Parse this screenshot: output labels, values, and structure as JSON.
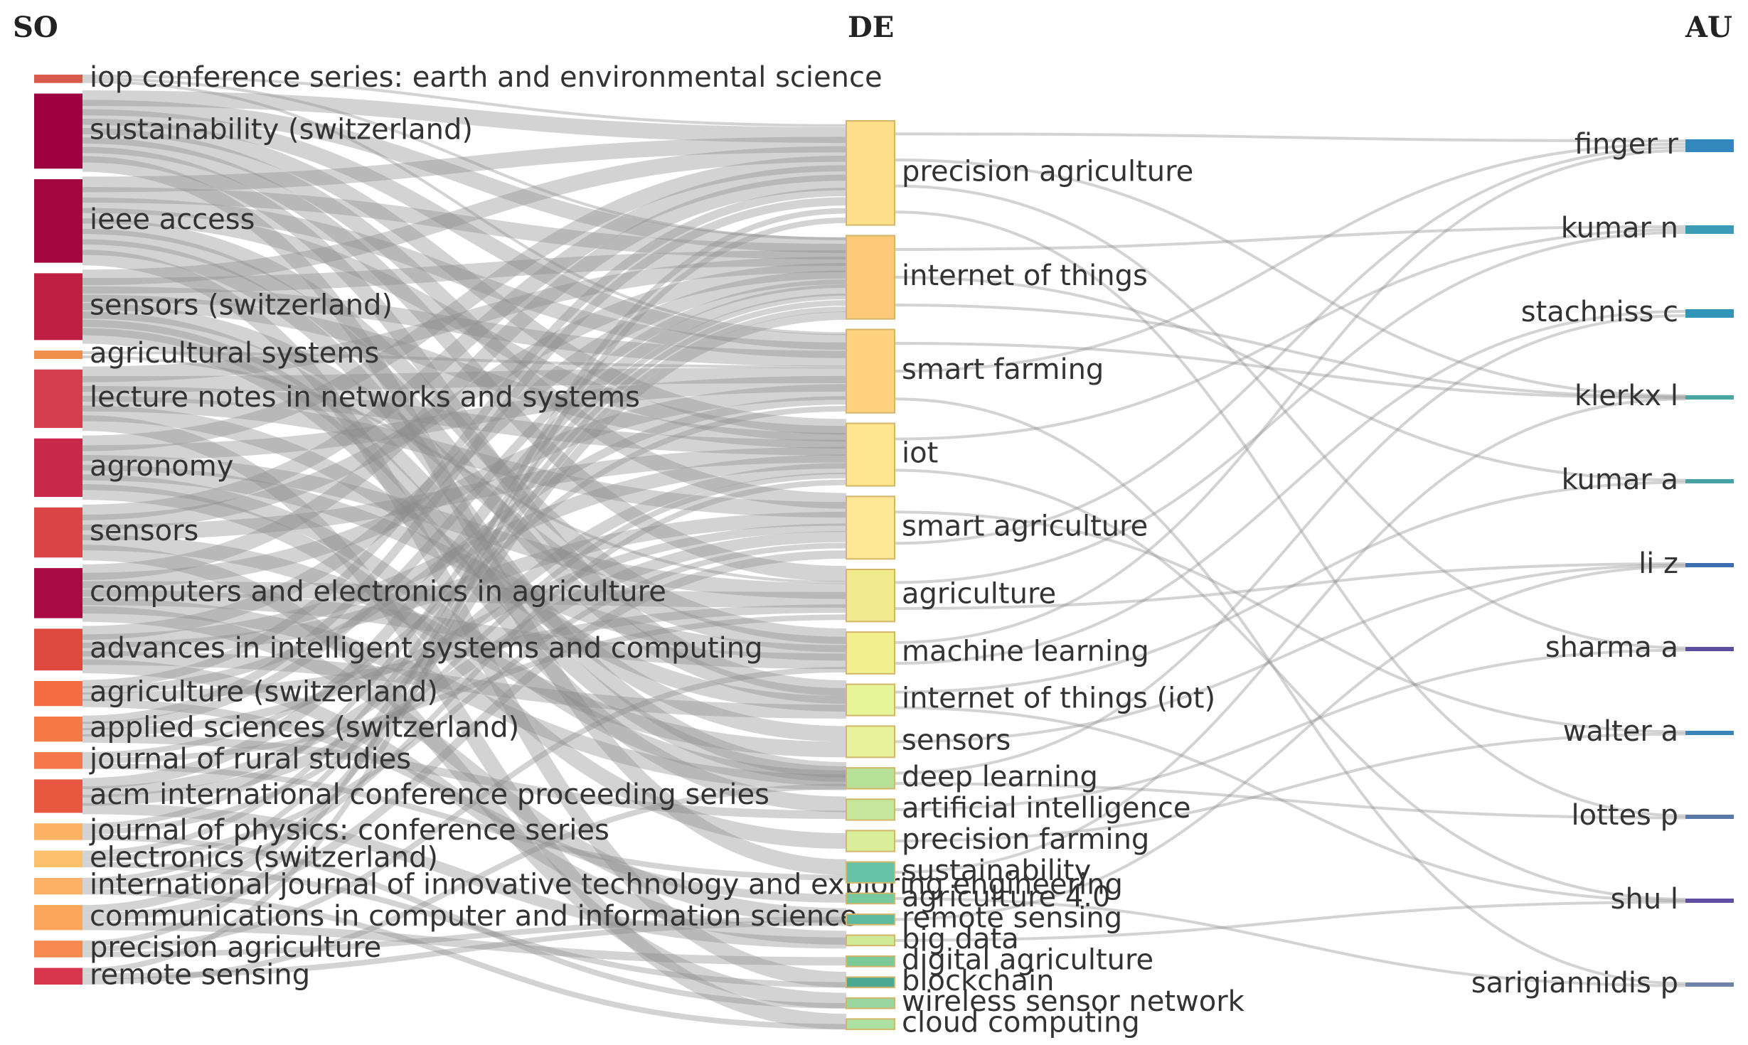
{
  "columns": [
    {
      "key": "SO",
      "label": "SO"
    },
    {
      "key": "DE",
      "label": "DE"
    },
    {
      "key": "AU",
      "label": "AU"
    }
  ],
  "so_nodes": [
    {
      "label": "iop conference series: earth and environmental science",
      "color": "#d85a4a",
      "weight": 1
    },
    {
      "label": "sustainability (switzerland)",
      "color": "#9e0142",
      "weight": 9
    },
    {
      "label": "ieee access",
      "color": "#a4063f",
      "weight": 10
    },
    {
      "label": "sensors (switzerland)",
      "color": "#c01f44",
      "weight": 8
    },
    {
      "label": "agricultural systems",
      "color": "#f08d4a",
      "weight": 1
    },
    {
      "label": "lecture notes in networks and systems",
      "color": "#d53e4f",
      "weight": 7
    },
    {
      "label": "agronomy",
      "color": "#c8284a",
      "weight": 7
    },
    {
      "label": "sensors",
      "color": "#dc4548",
      "weight": 6
    },
    {
      "label": "computers and electronics in agriculture",
      "color": "#a80b43",
      "weight": 6
    },
    {
      "label": "advances in intelligent systems and computing",
      "color": "#e0493f",
      "weight": 5
    },
    {
      "label": "agriculture (switzerland)",
      "color": "#f46d43",
      "weight": 3
    },
    {
      "label": "applied sciences (switzerland)",
      "color": "#f57a45",
      "weight": 3
    },
    {
      "label": "journal of rural studies",
      "color": "#f4784a",
      "weight": 2
    },
    {
      "label": "acm international conference proceeding series",
      "color": "#e8573f",
      "weight": 4
    },
    {
      "label": "journal of physics: conference series",
      "color": "#fbb262",
      "weight": 2
    },
    {
      "label": "electronics (switzerland)",
      "color": "#fdc06d",
      "weight": 2
    },
    {
      "label": "international journal of innovative technology and exploring engineering",
      "color": "#fdb268",
      "weight": 2
    },
    {
      "label": "communications in computer and information science",
      "color": "#fba65a",
      "weight": 3
    },
    {
      "label": "precision agriculture",
      "color": "#f6894e",
      "weight": 2
    },
    {
      "label": "remote sensing",
      "color": "#d8364e",
      "weight": 2
    }
  ],
  "de_nodes": [
    {
      "label": "precision agriculture",
      "color": "#fee08b",
      "weight": 10
    },
    {
      "label": "internet of things",
      "color": "#fdc878",
      "weight": 8
    },
    {
      "label": "smart farming",
      "color": "#fed27f",
      "weight": 8
    },
    {
      "label": "iot",
      "color": "#fee58e",
      "weight": 6
    },
    {
      "label": "smart agriculture",
      "color": "#fde694",
      "weight": 6
    },
    {
      "label": "agriculture",
      "color": "#f1ea8c",
      "weight": 5
    },
    {
      "label": "machine learning",
      "color": "#f2ef8f",
      "weight": 4
    },
    {
      "label": "internet of things (iot)",
      "color": "#e6f598",
      "weight": 3
    },
    {
      "label": "sensors",
      "color": "#e6f39a",
      "weight": 3
    },
    {
      "label": "deep learning",
      "color": "#b8e19a",
      "weight": 2
    },
    {
      "label": "artificial intelligence",
      "color": "#c4e79c",
      "weight": 2
    },
    {
      "label": "precision farming",
      "color": "#d9ef9a",
      "weight": 2
    },
    {
      "label": "sustainability",
      "color": "#66c2a5",
      "weight": 2
    },
    {
      "label": "agriculture 4.0",
      "color": "#78c9a0",
      "weight": 1
    },
    {
      "label": "remote sensing",
      "color": "#5fb99c",
      "weight": 1
    },
    {
      "label": "big data",
      "color": "#cfeb98",
      "weight": 1
    },
    {
      "label": "digital agriculture",
      "color": "#7cca9a",
      "weight": 1
    },
    {
      "label": "blockchain",
      "color": "#4ba892",
      "weight": 1
    },
    {
      "label": "wireless sensor network",
      "color": "#9ad6a0",
      "weight": 1
    },
    {
      "label": "cloud computing",
      "color": "#ace0a2",
      "weight": 1
    }
  ],
  "au_nodes": [
    {
      "label": "finger r",
      "color": "#3288bd",
      "weight": 3
    },
    {
      "label": "kumar n",
      "color": "#3a9bb7",
      "weight": 2
    },
    {
      "label": "stachniss c",
      "color": "#3295b8",
      "weight": 2
    },
    {
      "label": "klerkx l",
      "color": "#4aa5a0",
      "weight": 1
    },
    {
      "label": "kumar a",
      "color": "#48a2a5",
      "weight": 1
    },
    {
      "label": "li z",
      "color": "#3b6fb0",
      "weight": 1
    },
    {
      "label": "sharma a",
      "color": "#5b4fa0",
      "weight": 1
    },
    {
      "label": "walter a",
      "color": "#3a86b8",
      "weight": 1
    },
    {
      "label": "lottes p",
      "color": "#5a78a6",
      "weight": 1
    },
    {
      "label": "shu l",
      "color": "#5e4fa2",
      "weight": 1
    },
    {
      "label": "sarigiannidis p",
      "color": "#6d84a8",
      "weight": 1
    }
  ],
  "links_so_de": [
    [
      0,
      0
    ],
    [
      0,
      1
    ],
    [
      0,
      2
    ],
    [
      1,
      0
    ],
    [
      1,
      1
    ],
    [
      1,
      2
    ],
    [
      1,
      3
    ],
    [
      1,
      4
    ],
    [
      1,
      5
    ],
    [
      1,
      7
    ],
    [
      1,
      12
    ],
    [
      2,
      0
    ],
    [
      2,
      1
    ],
    [
      2,
      2
    ],
    [
      2,
      3
    ],
    [
      2,
      6
    ],
    [
      2,
      7
    ],
    [
      2,
      9
    ],
    [
      2,
      17
    ],
    [
      3,
      0
    ],
    [
      3,
      1
    ],
    [
      3,
      2
    ],
    [
      3,
      3
    ],
    [
      3,
      6
    ],
    [
      3,
      8
    ],
    [
      3,
      9
    ],
    [
      3,
      10
    ],
    [
      4,
      2
    ],
    [
      4,
      5
    ],
    [
      5,
      1
    ],
    [
      5,
      2
    ],
    [
      5,
      3
    ],
    [
      5,
      4
    ],
    [
      5,
      7
    ],
    [
      5,
      19
    ],
    [
      6,
      0
    ],
    [
      6,
      2
    ],
    [
      6,
      5
    ],
    [
      6,
      6
    ],
    [
      6,
      9
    ],
    [
      6,
      11
    ],
    [
      7,
      0
    ],
    [
      7,
      1
    ],
    [
      7,
      3
    ],
    [
      7,
      8
    ],
    [
      7,
      18
    ],
    [
      8,
      0
    ],
    [
      8,
      2
    ],
    [
      8,
      5
    ],
    [
      8,
      6
    ],
    [
      8,
      9
    ],
    [
      8,
      14
    ],
    [
      9,
      1
    ],
    [
      9,
      3
    ],
    [
      9,
      4
    ],
    [
      9,
      7
    ],
    [
      9,
      15
    ],
    [
      10,
      0
    ],
    [
      10,
      2
    ],
    [
      10,
      5
    ],
    [
      10,
      13
    ],
    [
      11,
      0
    ],
    [
      11,
      1
    ],
    [
      11,
      4
    ],
    [
      11,
      10
    ],
    [
      12,
      2
    ],
    [
      12,
      5
    ],
    [
      12,
      12
    ],
    [
      13,
      1
    ],
    [
      13,
      3
    ],
    [
      13,
      4
    ],
    [
      13,
      15
    ],
    [
      14,
      1
    ],
    [
      14,
      3
    ],
    [
      14,
      18
    ],
    [
      15,
      1
    ],
    [
      15,
      4
    ],
    [
      15,
      17
    ],
    [
      16,
      1
    ],
    [
      16,
      3
    ],
    [
      16,
      19
    ],
    [
      17,
      1
    ],
    [
      17,
      4
    ],
    [
      17,
      16
    ],
    [
      18,
      0
    ],
    [
      18,
      6
    ],
    [
      18,
      14
    ],
    [
      19,
      0
    ],
    [
      19,
      14
    ],
    [
      19,
      9
    ]
  ],
  "links_de_au": [
    [
      0,
      0
    ],
    [
      0,
      3
    ],
    [
      0,
      6
    ],
    [
      0,
      8
    ],
    [
      1,
      1
    ],
    [
      1,
      4
    ],
    [
      1,
      3
    ],
    [
      2,
      3
    ],
    [
      2,
      0
    ],
    [
      2,
      10
    ],
    [
      3,
      1
    ],
    [
      3,
      9
    ],
    [
      4,
      7
    ],
    [
      4,
      0
    ],
    [
      5,
      1
    ],
    [
      5,
      5
    ],
    [
      6,
      0
    ],
    [
      6,
      2
    ],
    [
      7,
      4
    ],
    [
      7,
      9
    ],
    [
      8,
      5
    ],
    [
      9,
      2
    ],
    [
      9,
      8
    ],
    [
      10,
      6
    ],
    [
      11,
      7
    ],
    [
      12,
      3
    ],
    [
      13,
      10
    ],
    [
      14,
      5
    ],
    [
      15,
      9
    ]
  ]
}
